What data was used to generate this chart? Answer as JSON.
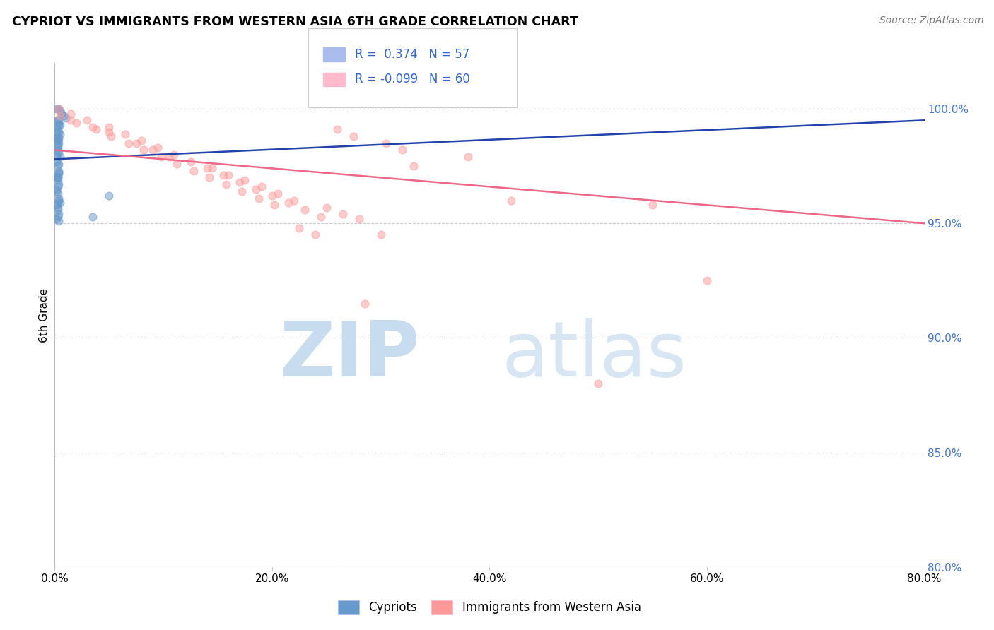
{
  "title": "CYPRIOT VS IMMIGRANTS FROM WESTERN ASIA 6TH GRADE CORRELATION CHART",
  "source": "Source: ZipAtlas.com",
  "ylabel": "6th Grade",
  "xlabel_ticks": [
    "0.0%",
    "",
    "",
    "",
    "",
    "",
    "",
    "",
    "",
    "",
    "20.0%",
    "",
    "",
    "",
    "",
    "",
    "",
    "",
    "",
    "",
    "40.0%",
    "",
    "",
    "",
    "",
    "",
    "",
    "",
    "",
    "",
    "60.0%",
    "",
    "",
    "",
    "",
    "",
    "",
    "",
    "",
    "",
    "80.0%"
  ],
  "xlabel_vals": [
    0,
    2,
    4,
    6,
    8,
    10,
    12,
    14,
    16,
    18,
    20,
    22,
    24,
    26,
    28,
    30,
    32,
    34,
    36,
    38,
    40,
    42,
    44,
    46,
    48,
    50,
    52,
    54,
    56,
    58,
    60,
    62,
    64,
    66,
    68,
    70,
    72,
    74,
    76,
    78,
    80
  ],
  "xlabel_show": [
    0,
    20,
    40,
    60,
    80
  ],
  "xlabel_show_labels": [
    "0.0%",
    "20.0%",
    "40.0%",
    "60.0%",
    "80.0%"
  ],
  "ylabel_vals": [
    80.0,
    85.0,
    90.0,
    95.0,
    100.0
  ],
  "ylabel_labels": [
    "80.0%",
    "85.0%",
    "90.0%",
    "95.0%",
    "100.0%"
  ],
  "blue_R": 0.374,
  "blue_N": 57,
  "pink_R": -0.099,
  "pink_N": 60,
  "blue_color": "#6699CC",
  "pink_color": "#FF9999",
  "blue_line_color": "#2244AA",
  "pink_line_color": "#EE6688",
  "legend_label_blue": "Cypriots",
  "legend_label_pink": "Immigrants from Western Asia",
  "blue_points_x": [
    0.2,
    0.4,
    0.5,
    0.6,
    0.8,
    1.0,
    0.3,
    0.4,
    0.5,
    0.2,
    0.3,
    0.4,
    0.5,
    0.3,
    0.2,
    0.3,
    0.4,
    0.3,
    0.4,
    0.5,
    0.2,
    0.3,
    0.4,
    0.2,
    0.3,
    0.4,
    0.2,
    0.3,
    0.4,
    0.5,
    0.2,
    0.3,
    0.4,
    0.3,
    0.2,
    0.4,
    0.3,
    0.2,
    0.3,
    0.4,
    0.3,
    0.2,
    0.3,
    3.5,
    0.4,
    0.3,
    0.4,
    0.3,
    0.4,
    0.3,
    0.2,
    0.3,
    0.4,
    0.3,
    0.2,
    0.4,
    5.0
  ],
  "blue_points_y": [
    100.0,
    100.0,
    99.9,
    99.8,
    99.7,
    99.6,
    99.5,
    99.4,
    99.3,
    99.2,
    99.1,
    99.0,
    98.9,
    98.8,
    98.7,
    98.6,
    98.5,
    98.3,
    98.1,
    97.9,
    97.7,
    97.5,
    97.3,
    97.0,
    96.9,
    96.7,
    96.5,
    96.3,
    96.1,
    95.9,
    95.8,
    95.6,
    95.4,
    95.3,
    95.2,
    95.1,
    99.5,
    98.0,
    97.0,
    96.0,
    95.7,
    99.0,
    98.4,
    95.3,
    97.2,
    96.6,
    98.7,
    98.2,
    97.6,
    97.0,
    96.4,
    95.9,
    99.3,
    98.6,
    97.9,
    97.2,
    96.2
  ],
  "pink_points_x": [
    0.4,
    1.5,
    3.5,
    5.0,
    7.5,
    9.0,
    10.5,
    14.5,
    16.0,
    17.5,
    19.0,
    20.5,
    22.0,
    25.0,
    26.5,
    28.0,
    30.0,
    1.5,
    3.0,
    5.0,
    6.5,
    8.0,
    9.5,
    11.0,
    12.5,
    14.0,
    15.5,
    17.0,
    18.5,
    20.0,
    21.5,
    23.0,
    24.5,
    26.0,
    27.5,
    30.5,
    32.0,
    38.0,
    0.5,
    2.0,
    3.8,
    5.2,
    6.8,
    8.2,
    9.8,
    11.2,
    12.8,
    14.2,
    15.8,
    17.2,
    18.8,
    20.2,
    33.0,
    42.0,
    50.0,
    22.5,
    24.0,
    28.5,
    55.0,
    60.0
  ],
  "pink_points_y": [
    100.0,
    99.5,
    99.2,
    99.0,
    98.5,
    98.2,
    97.9,
    97.4,
    97.1,
    96.9,
    96.6,
    96.3,
    96.0,
    95.7,
    95.4,
    95.2,
    94.5,
    99.8,
    99.5,
    99.2,
    98.9,
    98.6,
    98.3,
    98.0,
    97.7,
    97.4,
    97.1,
    96.8,
    96.5,
    96.2,
    95.9,
    95.6,
    95.3,
    99.1,
    98.8,
    98.5,
    98.2,
    97.9,
    99.7,
    99.4,
    99.1,
    98.8,
    98.5,
    98.2,
    97.9,
    97.6,
    97.3,
    97.0,
    96.7,
    96.4,
    96.1,
    95.8,
    97.5,
    96.0,
    88.0,
    94.8,
    94.5,
    91.5,
    95.8,
    92.5
  ]
}
